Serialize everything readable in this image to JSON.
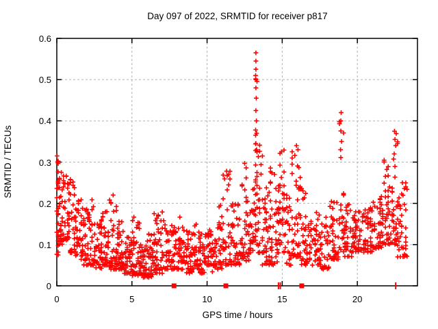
{
  "chart_data": {
    "type": "scatter",
    "title": "Day 097 of 2022, SRMTID for receiver p817",
    "xlabel": "GPS time / hours",
    "ylabel": "SRMTID / TECUs",
    "xlim": [
      0,
      24
    ],
    "ylim": [
      0,
      0.6
    ],
    "xticks": [
      0,
      5,
      10,
      15,
      20
    ],
    "yticks": [
      0,
      0.1,
      0.2,
      0.3,
      0.4,
      0.5,
      0.6
    ],
    "grid": true,
    "legend": false,
    "marker": "plus",
    "marker_color": "#ff0000",
    "grid_color": "#b0b0b0",
    "border_color": "#000000",
    "background_color": "#ffffff",
    "text_color": "#000000",
    "seed": 20220971,
    "x_column_step": 0.09,
    "envelope_bins": [
      [
        0.0,
        0.1,
        0.07,
        0.315,
        22,
        1.2
      ],
      [
        0.1,
        0.5,
        0.1,
        0.28,
        40,
        1.5
      ],
      [
        0.5,
        0.85,
        0.11,
        0.27,
        30,
        1.5
      ],
      [
        0.85,
        1.2,
        0.08,
        0.26,
        28,
        1.8
      ],
      [
        1.2,
        1.6,
        0.07,
        0.21,
        28,
        1.5
      ],
      [
        1.6,
        2.0,
        0.05,
        0.19,
        30,
        1.6
      ],
      [
        2.0,
        2.5,
        0.05,
        0.21,
        40,
        2.0
      ],
      [
        2.5,
        3.0,
        0.04,
        0.16,
        40,
        1.6
      ],
      [
        3.0,
        3.5,
        0.05,
        0.18,
        40,
        1.7
      ],
      [
        3.5,
        4.0,
        0.04,
        0.22,
        40,
        2.0
      ],
      [
        4.0,
        4.5,
        0.04,
        0.16,
        40,
        1.7
      ],
      [
        4.5,
        5.0,
        0.03,
        0.12,
        40,
        1.4
      ],
      [
        5.0,
        5.5,
        0.025,
        0.17,
        40,
        2.0
      ],
      [
        5.5,
        6.0,
        0.02,
        0.1,
        40,
        1.3
      ],
      [
        6.0,
        6.5,
        0.02,
        0.13,
        40,
        1.5
      ],
      [
        6.5,
        7.0,
        0.03,
        0.18,
        38,
        2.0
      ],
      [
        7.0,
        7.5,
        0.04,
        0.16,
        34,
        1.7
      ],
      [
        7.5,
        8.0,
        0.04,
        0.15,
        30,
        1.5
      ],
      [
        8.0,
        8.5,
        0.04,
        0.17,
        34,
        1.8
      ],
      [
        8.5,
        9.0,
        0.03,
        0.14,
        34,
        1.5
      ],
      [
        9.0,
        9.5,
        0.04,
        0.17,
        34,
        1.8
      ],
      [
        9.5,
        10.0,
        0.03,
        0.13,
        34,
        1.4
      ],
      [
        10.0,
        10.5,
        0.03,
        0.14,
        34,
        1.5
      ],
      [
        10.5,
        11.0,
        0.04,
        0.2,
        34,
        1.8
      ],
      [
        11.0,
        11.6,
        0.05,
        0.28,
        40,
        2.0
      ],
      [
        11.6,
        12.2,
        0.05,
        0.2,
        36,
        1.6
      ],
      [
        12.2,
        12.8,
        0.06,
        0.3,
        40,
        2.0
      ],
      [
        12.8,
        13.15,
        0.08,
        0.25,
        24,
        1.6
      ],
      [
        13.18,
        13.35,
        0.1,
        0.57,
        26,
        2.2
      ],
      [
        13.4,
        13.65,
        0.08,
        0.36,
        20,
        2.0
      ],
      [
        13.65,
        14.1,
        0.05,
        0.25,
        34,
        1.7
      ],
      [
        14.1,
        14.65,
        0.05,
        0.29,
        40,
        1.8
      ],
      [
        14.65,
        15.15,
        0.08,
        0.33,
        40,
        1.8
      ],
      [
        15.15,
        15.6,
        0.05,
        0.22,
        30,
        1.6
      ],
      [
        15.6,
        16.25,
        0.07,
        0.345,
        45,
        1.8
      ],
      [
        16.25,
        16.8,
        0.05,
        0.25,
        36,
        1.8
      ],
      [
        16.8,
        17.5,
        0.05,
        0.18,
        40,
        1.5
      ],
      [
        17.5,
        18.2,
        0.04,
        0.17,
        40,
        1.6
      ],
      [
        18.2,
        18.75,
        0.06,
        0.22,
        36,
        1.6
      ],
      [
        18.75,
        19.1,
        0.08,
        0.42,
        24,
        2.4
      ],
      [
        19.1,
        19.7,
        0.07,
        0.2,
        36,
        1.5
      ],
      [
        19.7,
        20.3,
        0.08,
        0.18,
        42,
        1.3
      ],
      [
        20.3,
        21.0,
        0.08,
        0.19,
        46,
        1.3
      ],
      [
        21.0,
        21.7,
        0.09,
        0.22,
        46,
        1.4
      ],
      [
        21.7,
        22.3,
        0.1,
        0.31,
        40,
        1.7
      ],
      [
        22.3,
        22.7,
        0.1,
        0.375,
        34,
        1.9
      ],
      [
        22.7,
        23.3,
        0.07,
        0.25,
        40,
        1.7
      ]
    ],
    "notable_points": [
      [
        0.02,
        0.315
      ],
      [
        0.05,
        0.3
      ],
      [
        0.3,
        0.275
      ],
      [
        0.9,
        0.258
      ],
      [
        3.75,
        0.22
      ],
      [
        11.3,
        0.278
      ],
      [
        12.5,
        0.297
      ],
      [
        13.25,
        0.565
      ],
      [
        13.25,
        0.545
      ],
      [
        13.25,
        0.525
      ],
      [
        13.25,
        0.5
      ],
      [
        13.25,
        0.48
      ],
      [
        13.27,
        0.455
      ],
      [
        13.25,
        0.425
      ],
      [
        13.28,
        0.4
      ],
      [
        13.3,
        0.37
      ],
      [
        13.25,
        0.345
      ],
      [
        13.3,
        0.33
      ],
      [
        14.95,
        0.325
      ],
      [
        15.95,
        0.34
      ],
      [
        16.05,
        0.33
      ],
      [
        18.92,
        0.42
      ],
      [
        18.9,
        0.4
      ],
      [
        18.95,
        0.35
      ],
      [
        18.88,
        0.33
      ],
      [
        22.47,
        0.375
      ],
      [
        22.5,
        0.355
      ],
      [
        22.55,
        0.34
      ],
      [
        22.45,
        0.32
      ],
      [
        23.0,
        0.25
      ]
    ],
    "baseline_squares_x": [
      7.8,
      11.25,
      16.3
    ],
    "baseline_tick_marks_x": [
      14.75,
      14.87,
      22.55
    ]
  }
}
